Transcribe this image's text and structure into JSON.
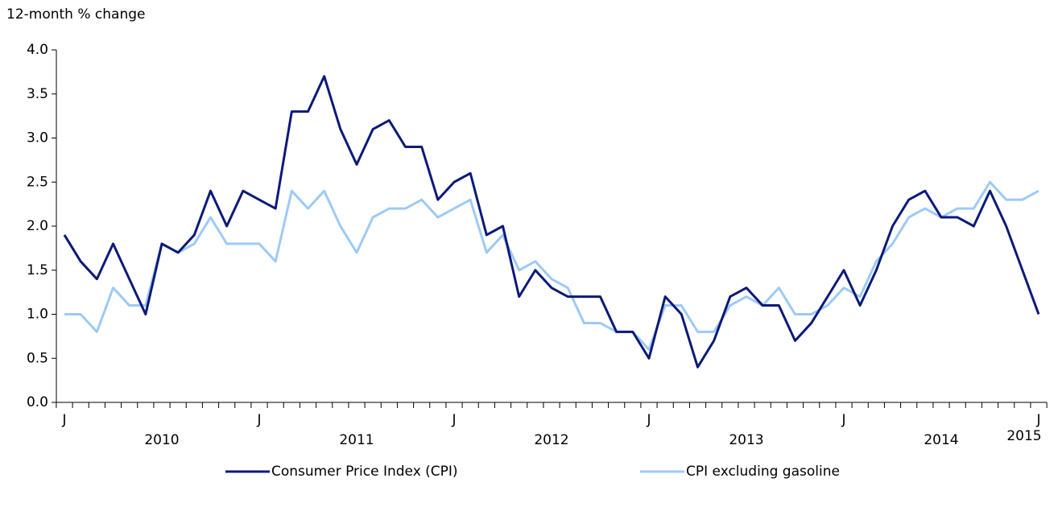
{
  "chart_data": {
    "type": "line",
    "y_label": "12-month % change",
    "categories": [
      "J",
      null,
      null,
      null,
      null,
      null,
      null,
      null,
      null,
      null,
      null,
      null,
      "J",
      null,
      null,
      null,
      null,
      null,
      null,
      null,
      null,
      null,
      null,
      null,
      "J",
      null,
      null,
      null,
      null,
      null,
      null,
      null,
      null,
      null,
      null,
      null,
      "J",
      null,
      null,
      null,
      null,
      null,
      null,
      null,
      null,
      null,
      null,
      null,
      "J",
      null,
      null,
      null,
      null,
      null,
      null,
      null,
      null,
      null,
      null,
      null,
      "J"
    ],
    "year_labels": [
      "2010",
      "2011",
      "2012",
      "2013",
      "2014",
      "2015"
    ],
    "series": [
      {
        "name": "Consumer Price Index (CPI)",
        "color": "#0a1a78",
        "values": [
          1.9,
          1.6,
          1.4,
          1.8,
          1.4,
          1.0,
          1.8,
          1.7,
          1.9,
          2.4,
          2.0,
          2.4,
          2.3,
          2.2,
          3.3,
          3.3,
          3.7,
          3.1,
          2.7,
          3.1,
          3.2,
          2.9,
          2.9,
          2.3,
          2.5,
          2.6,
          1.9,
          2.0,
          1.2,
          1.5,
          1.3,
          1.2,
          1.2,
          1.2,
          0.8,
          0.8,
          0.5,
          1.2,
          1.0,
          0.4,
          0.7,
          1.2,
          1.3,
          1.1,
          1.1,
          0.7,
          0.9,
          1.2,
          1.5,
          1.1,
          1.5,
          2.0,
          2.3,
          2.4,
          2.1,
          2.1,
          2.0,
          2.4,
          2.0,
          1.5,
          1.0
        ]
      },
      {
        "name": "CPI excluding gasoline",
        "color": "#9dcaf5",
        "values": [
          1.0,
          1.0,
          0.8,
          1.3,
          1.1,
          1.1,
          1.8,
          1.7,
          1.8,
          2.1,
          1.8,
          1.8,
          1.8,
          1.6,
          2.4,
          2.2,
          2.4,
          2.0,
          1.7,
          2.1,
          2.2,
          2.2,
          2.3,
          2.1,
          2.2,
          2.3,
          1.7,
          1.9,
          1.5,
          1.6,
          1.4,
          1.3,
          0.9,
          0.9,
          0.8,
          0.8,
          0.6,
          1.1,
          1.1,
          0.8,
          0.8,
          1.1,
          1.2,
          1.1,
          1.3,
          1.0,
          1.0,
          1.1,
          1.3,
          1.2,
          1.6,
          1.8,
          2.1,
          2.2,
          2.1,
          2.2,
          2.2,
          2.5,
          2.3,
          2.3,
          2.4
        ]
      }
    ],
    "ylim": [
      0,
      4
    ],
    "yticks": [
      {
        "value": 0,
        "label": "0.0"
      },
      0.5,
      {
        "value": 1,
        "label": "1.0"
      },
      1.5,
      {
        "value": 2,
        "label": "2.0"
      },
      2.5,
      {
        "value": 3,
        "label": "3.0"
      },
      3.5,
      {
        "value": 4,
        "label": "4.0"
      }
    ],
    "grid": false
  }
}
